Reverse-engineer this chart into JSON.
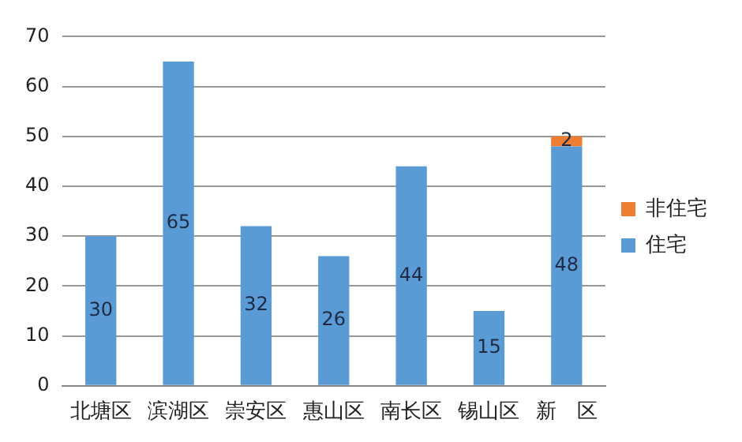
{
  "chart_data": {
    "type": "bar",
    "stacked": true,
    "categories": [
      "北塘区",
      "滨湖区",
      "崇安区",
      "惠山区",
      "南长区",
      "锡山区",
      "新　区"
    ],
    "series": [
      {
        "name": "住宅",
        "color": "#5b9bd5",
        "values": [
          30,
          65,
          32,
          26,
          44,
          15,
          48
        ]
      },
      {
        "name": "非住宅",
        "color": "#ed7d31",
        "values": [
          null,
          null,
          null,
          null,
          null,
          null,
          2
        ]
      }
    ],
    "ylim": [
      0,
      70
    ],
    "yticks": [
      0,
      10,
      20,
      30,
      40,
      50,
      60,
      70
    ],
    "grid": "y",
    "legend": "right",
    "data_labels": true
  }
}
